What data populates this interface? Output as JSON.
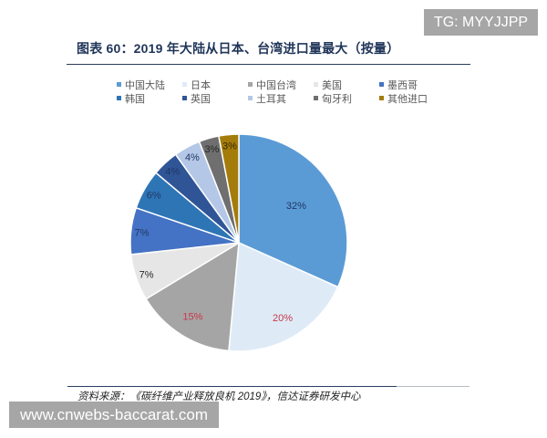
{
  "chart_data": {
    "type": "pie",
    "title": "图表 60：2019 年大陆从日本、台湾进口量最大（按量）",
    "categories": [
      "中国大陆",
      "日本",
      "中国台湾",
      "美国",
      "墨西哥",
      "韩国",
      "英国",
      "土耳其",
      "匈牙利",
      "其他进口"
    ],
    "values": [
      32,
      20,
      15,
      7,
      7,
      6,
      4,
      4,
      3,
      3
    ],
    "labels": [
      "32%",
      "20%",
      "15%",
      "7%",
      "7%",
      "6%",
      "4%",
      "4%",
      "3%",
      "3%"
    ],
    "colors": [
      "#5B9BD5",
      "#DEEBF7",
      "#A5A5A5",
      "#E7E6E6",
      "#4472C4",
      "#2E75B6",
      "#2F5597",
      "#B4C7E7",
      "#6F6F6F",
      "#A47C0B"
    ],
    "label_colors": [
      "#1F3864",
      "#C8384A",
      "#C8384A",
      "#262626",
      "#1F3864",
      "#1F3864",
      "#1F3864",
      "#1F3864",
      "#262626",
      "#3A2A00"
    ],
    "unit": "%",
    "start_angle": "12 o'clock",
    "direction": "clockwise",
    "legend_position": "top",
    "xlabel": "",
    "ylabel": ""
  },
  "source_note": "资料来源：《碳纤维产业释放良机 2019》，信达证券研发中心",
  "watermarks": {
    "top_right": "TG: MYYJJPP",
    "bottom_left": "www.cnwebs-baccarat.com"
  }
}
